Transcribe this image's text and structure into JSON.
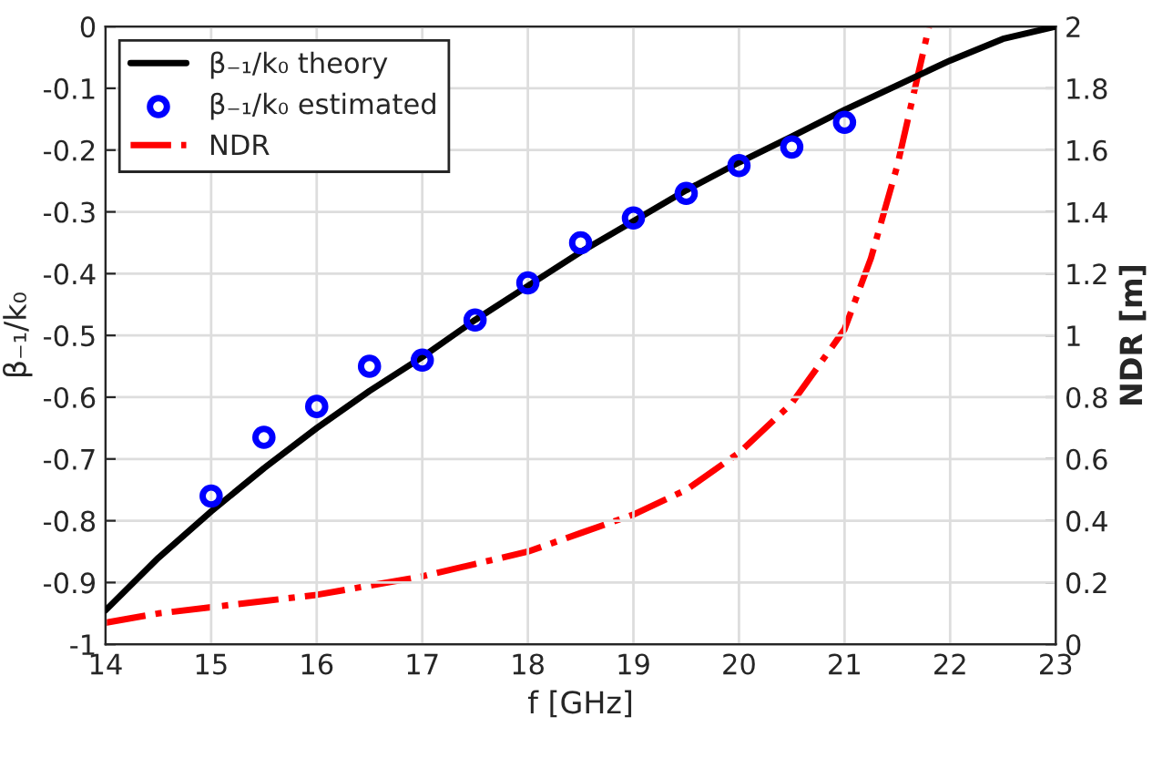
{
  "chart_data": {
    "type": "line",
    "xlabel": "f [GHz]",
    "ylabel": "β₋₁/k₀",
    "y2label": "NDR [m]",
    "xlim": [
      14,
      23
    ],
    "xticks": [
      14,
      15,
      16,
      17,
      18,
      19,
      20,
      21,
      22,
      23
    ],
    "ylim": [
      -1,
      0
    ],
    "yticks": [
      -1,
      -0.9,
      -0.8,
      -0.7,
      -0.6,
      -0.5,
      -0.4,
      -0.3,
      -0.2,
      -0.1,
      0
    ],
    "y2lim": [
      0,
      2
    ],
    "y2ticks": [
      0,
      0.2,
      0.4,
      0.6,
      0.8,
      1,
      1.2,
      1.4,
      1.6,
      1.8,
      2
    ],
    "grid": true,
    "legend": "top left",
    "series": [
      {
        "name": "β₋₁/k₀ theory",
        "color": "#000000",
        "line_style": "solid",
        "x": [
          14,
          14.5,
          15,
          15.5,
          16,
          16.5,
          17,
          17.5,
          18,
          18.5,
          19,
          19.5,
          20,
          20.5,
          21,
          21.5,
          22,
          22.5,
          23
        ],
        "values": [
          -0.945,
          -0.86,
          -0.785,
          -0.715,
          -0.65,
          -0.59,
          -0.535,
          -0.475,
          -0.42,
          -0.365,
          -0.315,
          -0.265,
          -0.22,
          -0.178,
          -0.135,
          -0.095,
          -0.055,
          -0.02,
          0
        ]
      },
      {
        "name": "β₋₁/k₀ estimated",
        "type": "scatter",
        "color": "#0000ff",
        "marker": "circle",
        "x": [
          15,
          15.5,
          16,
          16.5,
          17,
          17.5,
          18,
          18.5,
          19,
          19.5,
          20,
          20.5,
          21
        ],
        "values": [
          -0.76,
          -0.665,
          -0.615,
          -0.55,
          -0.54,
          -0.475,
          -0.415,
          -0.35,
          -0.31,
          -0.27,
          -0.225,
          -0.195,
          -0.155
        ]
      },
      {
        "name": "NDR",
        "axis": "y2",
        "color": "#ff0000",
        "line_style": "dashdot",
        "x": [
          14,
          14.5,
          15,
          15.5,
          16,
          16.5,
          17,
          17.5,
          18,
          18.5,
          19,
          19.5,
          20,
          20.5,
          21,
          21.25,
          21.5,
          21.7,
          21.8
        ],
        "values": [
          0.07,
          0.1,
          0.12,
          0.14,
          0.16,
          0.19,
          0.22,
          0.26,
          0.3,
          0.36,
          0.42,
          0.5,
          0.62,
          0.78,
          1.02,
          1.25,
          1.55,
          1.85,
          2.0
        ]
      }
    ]
  }
}
